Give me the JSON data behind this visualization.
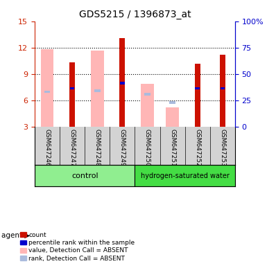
{
  "title": "GDS5215 / 1396873_at",
  "samples": [
    "GSM647246",
    "GSM647247",
    "GSM647248",
    "GSM647249",
    "GSM647250",
    "GSM647251",
    "GSM647252",
    "GSM647253"
  ],
  "red_values": [
    null,
    10.3,
    null,
    13.1,
    null,
    null,
    10.2,
    11.2
  ],
  "pink_values": [
    11.85,
    null,
    11.7,
    null,
    7.9,
    5.2,
    null,
    null
  ],
  "blue_values": [
    null,
    7.4,
    null,
    8.0,
    null,
    null,
    7.4,
    7.4
  ],
  "light_blue_values": [
    7.0,
    null,
    7.1,
    null,
    6.7,
    5.8,
    null,
    null
  ],
  "ylim": [
    3,
    15
  ],
  "yticks_left": [
    3,
    6,
    9,
    12,
    15
  ],
  "yticks_right_labels": [
    "0",
    "25",
    "50",
    "75",
    "100%"
  ],
  "yticks_right_vals": [
    3,
    6,
    9,
    12,
    15
  ],
  "left_axis_color": "#CC2200",
  "right_axis_color": "#0000CC",
  "red_color": "#CC1100",
  "pink_color": "#FFB6B6",
  "blue_color": "#0000CC",
  "light_blue_color": "#AABBDD",
  "bg_plot": "#FFFFFF",
  "bg_label": "#D3D3D3",
  "bg_group_control": "#90EE90",
  "bg_group_hw": "#44DD44",
  "control_count": 4,
  "hw_count": 4
}
